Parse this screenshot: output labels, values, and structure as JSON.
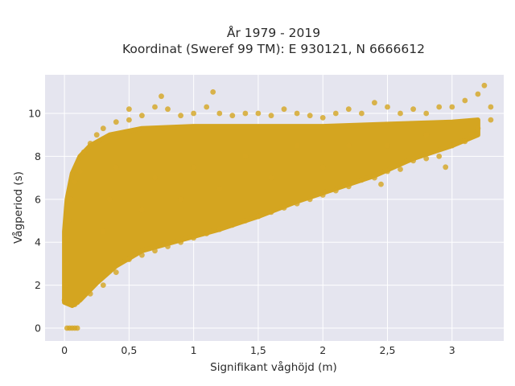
{
  "chart_data": {
    "type": "scatter",
    "title_line1": "År 1979 - 2019",
    "title_line2": "Koordinat (Sweref 99 TM): E 930121, N 6666612",
    "xlabel": "Signifikant våghöjd (m)",
    "ylabel": "Vågperiod (s)",
    "xlim": [
      -0.15,
      3.4
    ],
    "ylim": [
      -0.6,
      11.8
    ],
    "xticks": [
      {
        "value": 0,
        "label": "0"
      },
      {
        "value": 0.5,
        "label": "0,5"
      },
      {
        "value": 1,
        "label": "1"
      },
      {
        "value": 1.5,
        "label": "1,5"
      },
      {
        "value": 2,
        "label": "2"
      },
      {
        "value": 2.5,
        "label": "2,5"
      },
      {
        "value": 3,
        "label": "3"
      }
    ],
    "yticks": [
      {
        "value": 0,
        "label": "0"
      },
      {
        "value": 2,
        "label": "2"
      },
      {
        "value": 4,
        "label": "4"
      },
      {
        "value": 6,
        "label": "6"
      },
      {
        "value": 8,
        "label": "8"
      },
      {
        "value": 10,
        "label": "10"
      }
    ],
    "grid": true,
    "marker_color": "#D4A520",
    "background_color": "#E5E5EF",
    "series": [
      {
        "points": [
          [
            0.02,
            0.0
          ],
          [
            0.04,
            0.0
          ],
          [
            0.06,
            0.0
          ],
          [
            0.08,
            0.0
          ],
          [
            0.1,
            0.0
          ],
          [
            0.0,
            1.3
          ],
          [
            0.01,
            2.0
          ],
          [
            0.02,
            3.0
          ],
          [
            0.02,
            4.2
          ],
          [
            0.03,
            5.0
          ],
          [
            0.05,
            1.2
          ],
          [
            0.08,
            1.1
          ],
          [
            0.1,
            1.2
          ],
          [
            0.05,
            6.0
          ],
          [
            0.08,
            6.8
          ],
          [
            0.1,
            7.6
          ],
          [
            0.12,
            7.3
          ],
          [
            0.15,
            8.2
          ],
          [
            0.2,
            8.6
          ],
          [
            0.2,
            1.6
          ],
          [
            0.25,
            9.0
          ],
          [
            0.3,
            2.0
          ],
          [
            0.3,
            9.3
          ],
          [
            0.4,
            2.6
          ],
          [
            0.4,
            9.6
          ],
          [
            0.5,
            3.2
          ],
          [
            0.5,
            9.7
          ],
          [
            0.5,
            10.2
          ],
          [
            0.6,
            3.4
          ],
          [
            0.6,
            9.9
          ],
          [
            0.7,
            3.6
          ],
          [
            0.7,
            10.3
          ],
          [
            0.75,
            10.8
          ],
          [
            0.8,
            3.8
          ],
          [
            0.8,
            10.2
          ],
          [
            0.9,
            4.0
          ],
          [
            0.9,
            9.9
          ],
          [
            1.0,
            4.2
          ],
          [
            1.0,
            10.0
          ],
          [
            1.1,
            4.4
          ],
          [
            1.1,
            10.3
          ],
          [
            1.15,
            11.0
          ],
          [
            1.2,
            4.6
          ],
          [
            1.2,
            10.0
          ],
          [
            1.3,
            4.8
          ],
          [
            1.3,
            9.9
          ],
          [
            1.4,
            5.0
          ],
          [
            1.4,
            10.0
          ],
          [
            1.5,
            5.2
          ],
          [
            1.5,
            10.0
          ],
          [
            1.6,
            5.4
          ],
          [
            1.6,
            9.9
          ],
          [
            1.7,
            5.6
          ],
          [
            1.7,
            10.2
          ],
          [
            1.8,
            5.8
          ],
          [
            1.8,
            10.0
          ],
          [
            1.9,
            6.0
          ],
          [
            1.9,
            9.9
          ],
          [
            2.0,
            6.2
          ],
          [
            2.0,
            9.8
          ],
          [
            2.1,
            6.4
          ],
          [
            2.1,
            10.0
          ],
          [
            2.2,
            6.6
          ],
          [
            2.2,
            10.2
          ],
          [
            2.3,
            6.9
          ],
          [
            2.3,
            10.0
          ],
          [
            2.4,
            7.0
          ],
          [
            2.4,
            10.5
          ],
          [
            2.45,
            6.7
          ],
          [
            2.5,
            7.3
          ],
          [
            2.5,
            10.3
          ],
          [
            2.6,
            7.4
          ],
          [
            2.6,
            10.0
          ],
          [
            2.7,
            7.8
          ],
          [
            2.7,
            10.2
          ],
          [
            2.8,
            7.9
          ],
          [
            2.8,
            10.0
          ],
          [
            2.9,
            8.0
          ],
          [
            2.9,
            10.3
          ],
          [
            2.95,
            7.5
          ],
          [
            3.0,
            8.5
          ],
          [
            3.0,
            10.3
          ],
          [
            3.1,
            8.7
          ],
          [
            3.1,
            10.6
          ],
          [
            3.15,
            9.0
          ],
          [
            3.2,
            9.3
          ],
          [
            3.2,
            10.9
          ],
          [
            3.25,
            11.3
          ],
          [
            3.3,
            10.3
          ],
          [
            3.3,
            9.7
          ],
          [
            0.3,
            4.5
          ],
          [
            0.35,
            6.0
          ],
          [
            0.4,
            7.5
          ],
          [
            0.6,
            5.5
          ],
          [
            0.7,
            7.0
          ],
          [
            0.9,
            6.0
          ],
          [
            1.0,
            7.5
          ],
          [
            1.2,
            6.5
          ],
          [
            1.4,
            8.0
          ],
          [
            1.6,
            7.0
          ],
          [
            1.8,
            8.5
          ],
          [
            2.0,
            7.5
          ],
          [
            2.2,
            8.5
          ],
          [
            2.5,
            8.5
          ],
          [
            2.8,
            9.0
          ]
        ]
      }
    ]
  }
}
